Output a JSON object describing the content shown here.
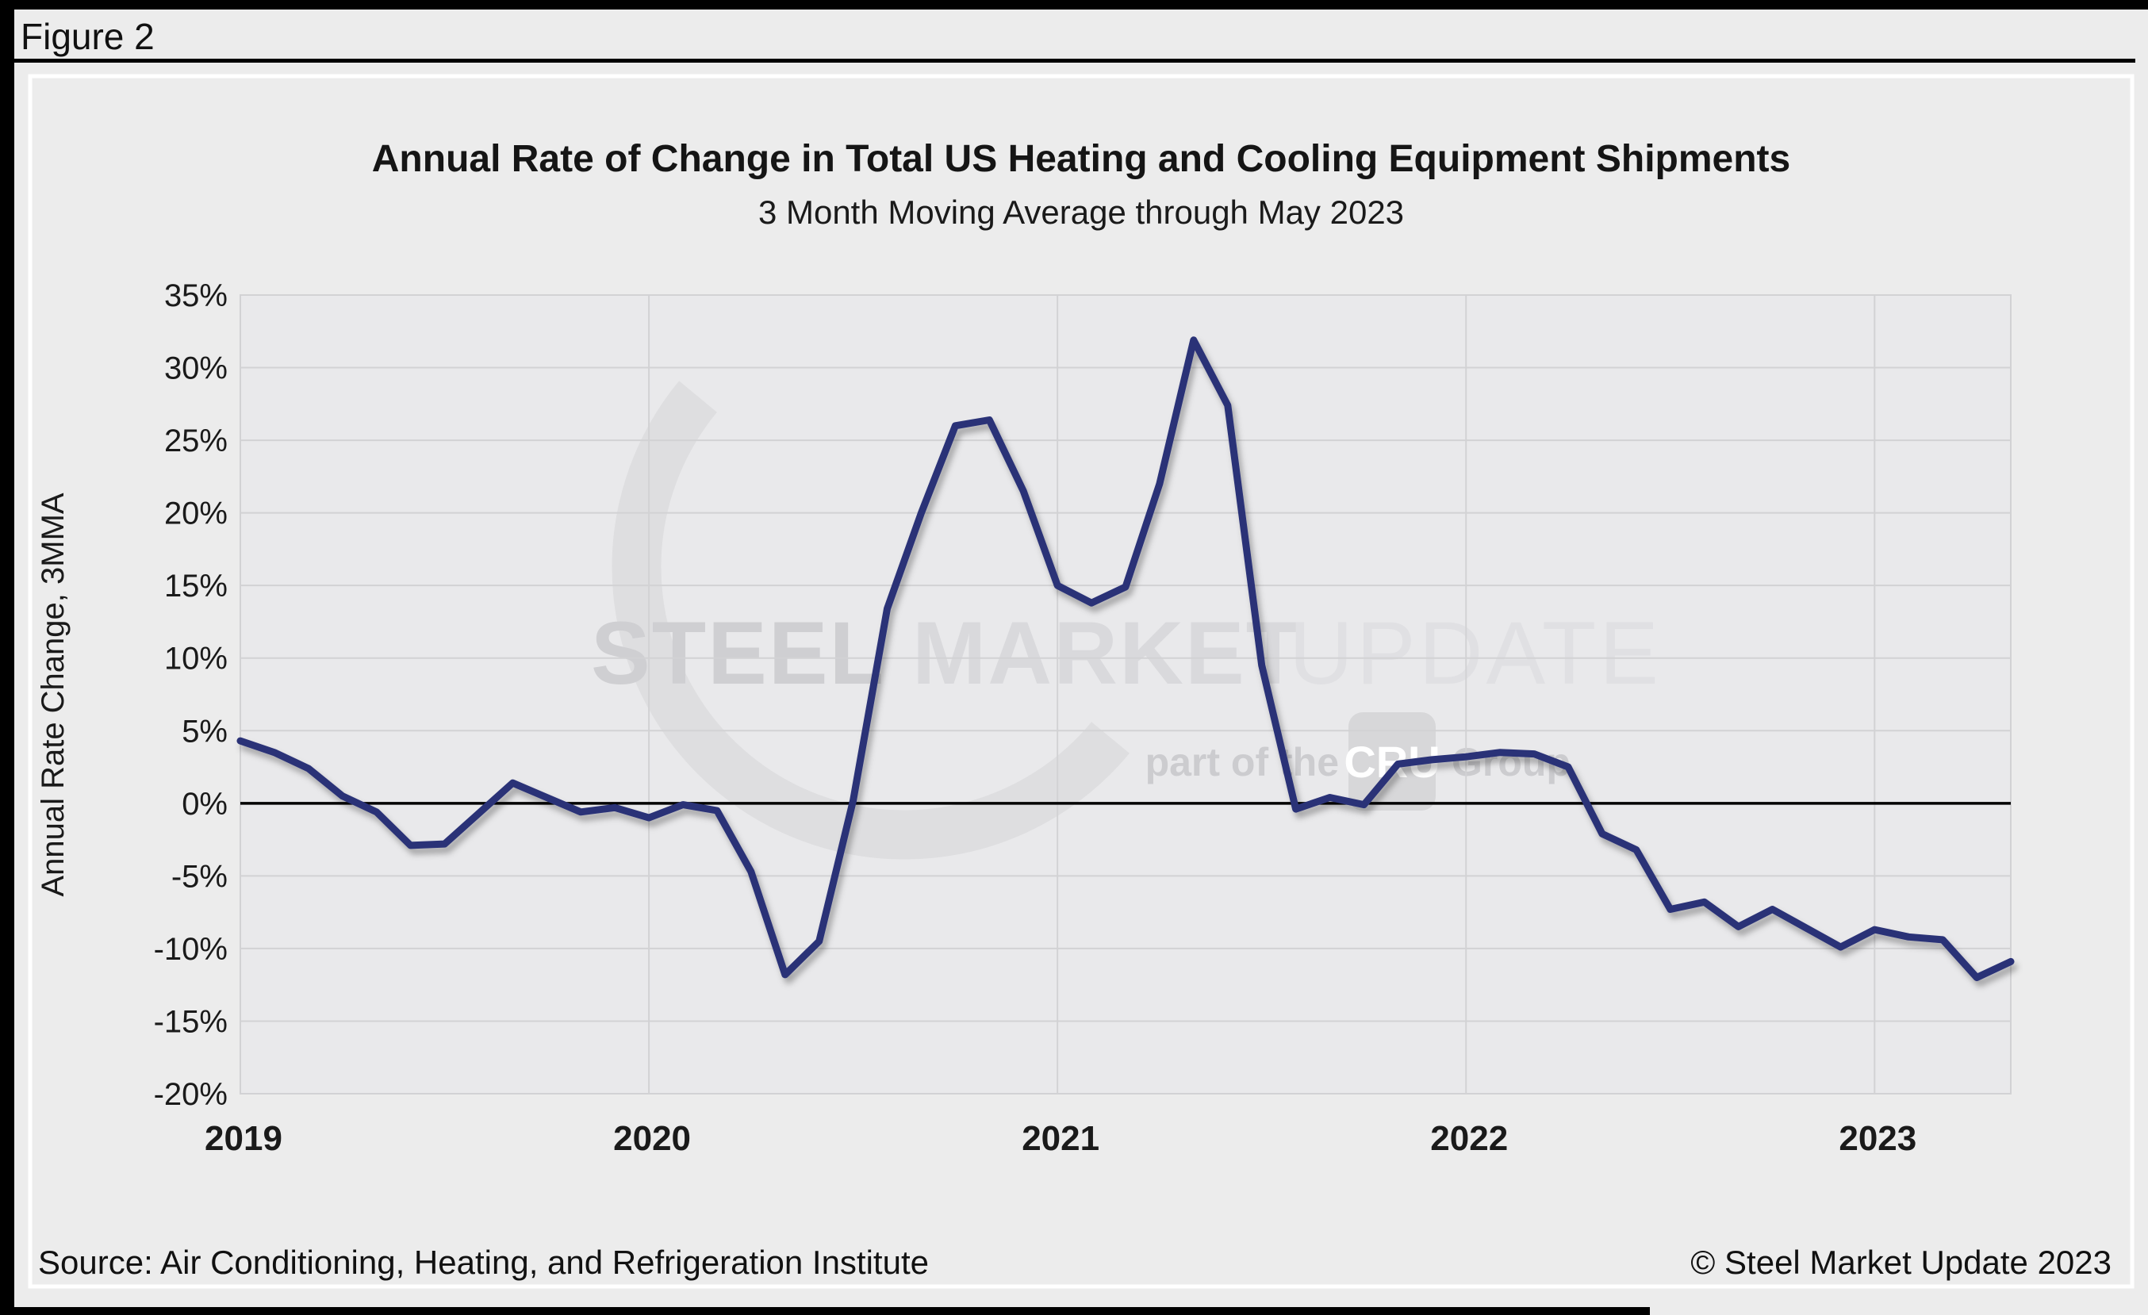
{
  "figure_label": "Figure 2",
  "title": "Annual Rate of Change in Total US Heating and Cooling Equipment Shipments",
  "subtitle": "3 Month Moving Average through May 2023",
  "source": "Source: Air Conditioning, Heating, and Refrigeration Institute",
  "copyright": "© Steel Market Update 2023",
  "watermark": {
    "word1": "STEEL",
    "word2": "MARKET",
    "word3": "UPDATE",
    "tagline_prefix": "part of the",
    "badge": "CRU",
    "tagline_suffix": "Group"
  },
  "colors": {
    "page_bg": "#ececec",
    "plot_bg": "#e9e9eb",
    "gridline": "#d2d2d4",
    "zero_line": "#000000",
    "series_line": "#2b3377",
    "frame_black": "#000000",
    "panel_border": "#ffffff",
    "watermark_gray": "#dedee0"
  },
  "chart_data": {
    "type": "line",
    "title": "Annual Rate of Change in Total US Heating and Cooling Equipment Shipments",
    "subtitle": "3 Month Moving Average through May 2023",
    "xlabel": "",
    "ylabel": "Annual Rate Change, 3MMA",
    "ylim": [
      -20,
      35
    ],
    "y_tick_step": 5,
    "y_tick_labels": [
      "35%",
      "30%",
      "25%",
      "20%",
      "15%",
      "10%",
      "5%",
      "0%",
      "-5%",
      "-10%",
      "-15%",
      "-20%"
    ],
    "x_tick_labels": [
      "2019",
      "2020",
      "2021",
      "2022",
      "2023"
    ],
    "x_start": "2019-01",
    "x_end": "2023-05",
    "grid": true,
    "zero_line": true,
    "legend": "none",
    "series": [
      {
        "name": "Annual rate of change, 3-month moving average",
        "color": "#2b3377",
        "monthly_values": [
          4.3,
          3.5,
          2.4,
          0.5,
          -0.6,
          -2.9,
          -2.8,
          -0.7,
          1.4,
          0.4,
          -0.6,
          -0.3,
          -1.0,
          -0.1,
          -0.5,
          -4.7,
          -11.8,
          -9.5,
          0.2,
          13.4,
          20.0,
          26.0,
          26.4,
          21.5,
          15.0,
          13.8,
          14.9,
          22.0,
          31.9,
          27.4,
          9.5,
          -0.4,
          0.4,
          -0.1,
          2.7,
          3.0,
          3.2,
          3.5,
          3.4,
          2.5,
          -2.1,
          -3.2,
          -7.3,
          -6.8,
          -8.5,
          -7.3,
          -8.6,
          -9.9,
          -8.7,
          -9.2,
          -9.4,
          -12.0,
          -10.9
        ]
      }
    ]
  }
}
